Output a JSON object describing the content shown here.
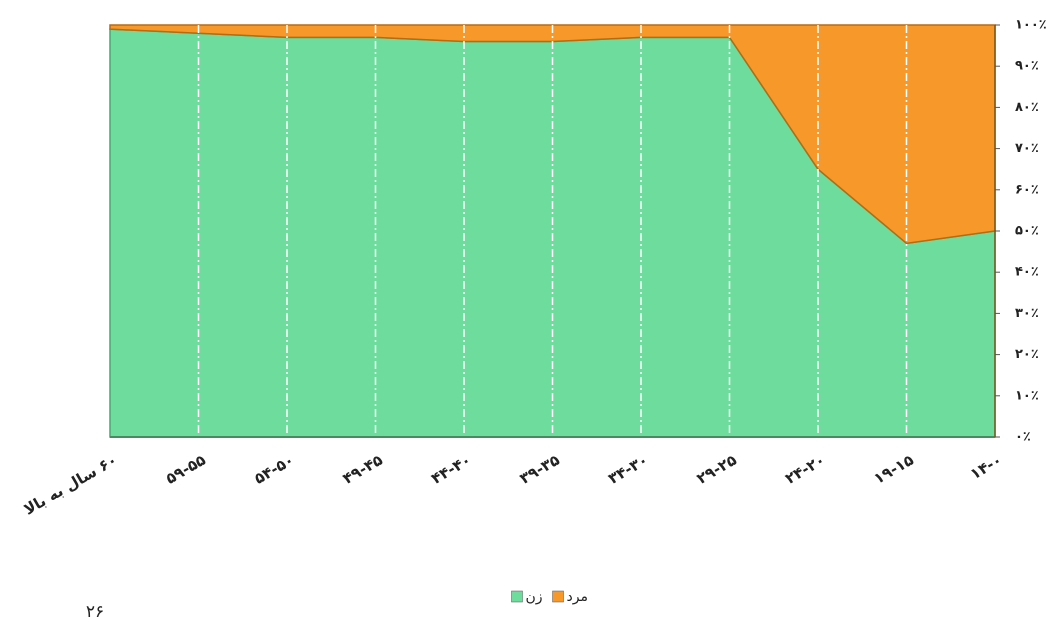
{
  "chart_data": {
    "type": "stacked_area",
    "categories": [
      "۱۴-۰",
      "۱۹-۱۵",
      "۲۴-۲۰",
      "۲۹-۲۵",
      "۳۴-۳۰",
      "۳۹-۳۵",
      "۴۴-۴۰",
      "۴۹-۴۵",
      "۵۴-۵۰",
      "۵۹-۵۵",
      "۶۰ سال به بالا"
    ],
    "series": [
      {
        "name": "زن",
        "color": "#6ddc9c",
        "values": [
          50,
          47,
          65,
          97,
          97,
          96,
          96,
          97,
          97,
          98,
          99
        ]
      },
      {
        "name": "مرد",
        "color": "#f7982a",
        "values": [
          50,
          53,
          35,
          3,
          3,
          4,
          4,
          3,
          3,
          2,
          1
        ]
      }
    ],
    "ylim": [
      0,
      100
    ],
    "yticks": [
      {
        "value": 0,
        "label": "۰٪"
      },
      {
        "value": 10,
        "label": "۱۰٪"
      },
      {
        "value": 20,
        "label": "۲۰٪"
      },
      {
        "value": 30,
        "label": "۳۰٪"
      },
      {
        "value": 40,
        "label": "۴۰٪"
      },
      {
        "value": 50,
        "label": "۵۰٪"
      },
      {
        "value": 60,
        "label": "۶۰٪"
      },
      {
        "value": 70,
        "label": "۷۰٪"
      },
      {
        "value": 80,
        "label": "۸۰٪"
      },
      {
        "value": 90,
        "label": "۹۰٪"
      },
      {
        "value": 100,
        "label": "۱۰۰٪"
      }
    ],
    "reverse_x": true,
    "y_axis_side": "right",
    "grid": true
  },
  "page_number": "۲۶"
}
